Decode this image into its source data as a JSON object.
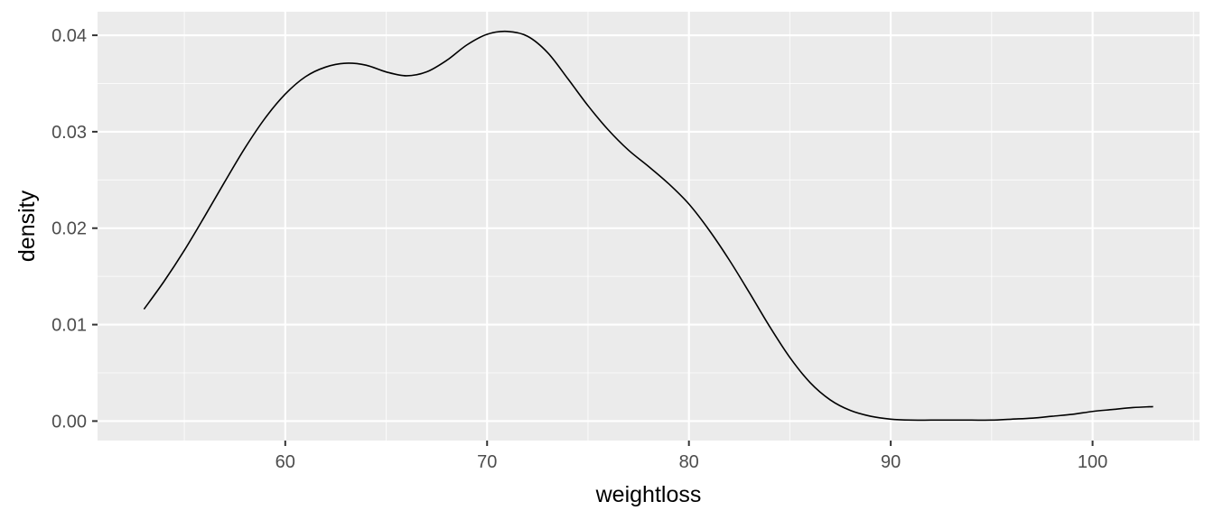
{
  "chart_data": {
    "type": "line",
    "title": "",
    "xlabel": "weightloss",
    "ylabel": "density",
    "xlim": [
      50.7,
      105.3
    ],
    "ylim": [
      -0.00202,
      0.04244
    ],
    "x_ticks": [
      60,
      70,
      80,
      90,
      100
    ],
    "x_tick_labels": [
      "60",
      "70",
      "80",
      "90",
      "100"
    ],
    "y_ticks": [
      0.0,
      0.01,
      0.02,
      0.03,
      0.04
    ],
    "y_tick_labels": [
      "0.00",
      "0.01",
      "0.02",
      "0.03",
      "0.04"
    ],
    "grid": true,
    "legend": "none",
    "colors": {
      "line": "#000000",
      "panel": "#ebebeb",
      "grid": "#ffffff",
      "tick_text": "#4d4d4d"
    },
    "series": [
      {
        "x": [
          53.0,
          54.0,
          55.0,
          56.0,
          57.0,
          58.0,
          59.0,
          60.0,
          61.0,
          62.0,
          63.0,
          64.0,
          65.0,
          66.0,
          67.0,
          68.0,
          69.0,
          70.0,
          71.0,
          72.0,
          73.0,
          74.0,
          75.0,
          76.0,
          77.0,
          78.0,
          79.0,
          80.0,
          81.0,
          82.0,
          83.0,
          84.0,
          85.0,
          86.0,
          87.0,
          88.0,
          89.0,
          90.0,
          91.0,
          92.0,
          93.0,
          94.0,
          95.0,
          96.0,
          97.0,
          98.0,
          99.0,
          100.0,
          101.0,
          102.0,
          103.0
        ],
        "y": [
          0.0116,
          0.0145,
          0.0177,
          0.0212,
          0.0248,
          0.0283,
          0.0314,
          0.0339,
          0.0357,
          0.0367,
          0.0371,
          0.0369,
          0.0362,
          0.0358,
          0.0362,
          0.0374,
          0.039,
          0.0401,
          0.0404,
          0.0399,
          0.0382,
          0.0355,
          0.0327,
          0.0302,
          0.0281,
          0.0264,
          0.0246,
          0.0225,
          0.0198,
          0.0167,
          0.0133,
          0.0098,
          0.0066,
          0.004,
          0.0022,
          0.0011,
          0.0005,
          0.0002,
          0.0001,
          0.0001,
          0.0001,
          0.0001,
          0.0001,
          0.0002,
          0.0003,
          0.0005,
          0.0007,
          0.001,
          0.0012,
          0.0014,
          0.0015
        ]
      }
    ]
  }
}
